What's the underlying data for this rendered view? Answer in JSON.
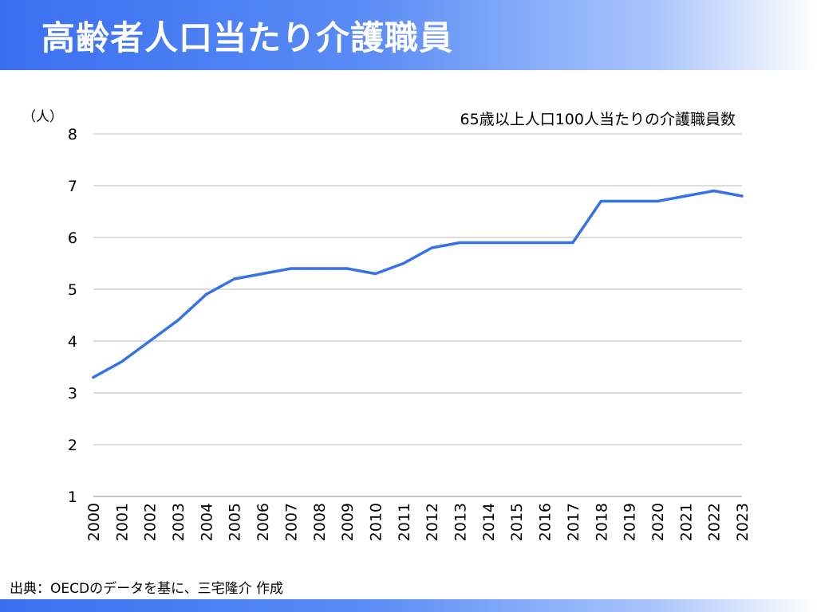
{
  "header": {
    "title": "高齢者人口当たり介護職員"
  },
  "footer": {
    "source": "出典：OECDのデータを基に、三宅隆介 作成"
  },
  "colors": {
    "accent": "#3a6ff0",
    "line": "#3572e5",
    "grid": "#bbbbbb"
  },
  "chart_data": {
    "type": "line",
    "title": "65歳以上人口100人当たりの介護職員数",
    "ylabel": "（人）",
    "xlabel": "",
    "ylim": [
      1,
      8
    ],
    "yticks": [
      1,
      2,
      3,
      4,
      5,
      6,
      7,
      8
    ],
    "grid": true,
    "legend": "none",
    "categories": [
      "2000",
      "2001",
      "2002",
      "2003",
      "2004",
      "2005",
      "2006",
      "2007",
      "2008",
      "2009",
      "2010",
      "2011",
      "2012",
      "2013",
      "2014",
      "2015",
      "2016",
      "2017",
      "2018",
      "2019",
      "2020",
      "2021",
      "2022",
      "2023"
    ],
    "series": [
      {
        "values": [
          3.3,
          3.6,
          4.0,
          4.4,
          4.9,
          5.2,
          5.3,
          5.4,
          5.4,
          5.4,
          5.3,
          5.5,
          5.8,
          5.9,
          5.9,
          5.9,
          5.9,
          5.9,
          6.7,
          6.7,
          6.7,
          6.8,
          6.9,
          6.8
        ]
      }
    ]
  }
}
